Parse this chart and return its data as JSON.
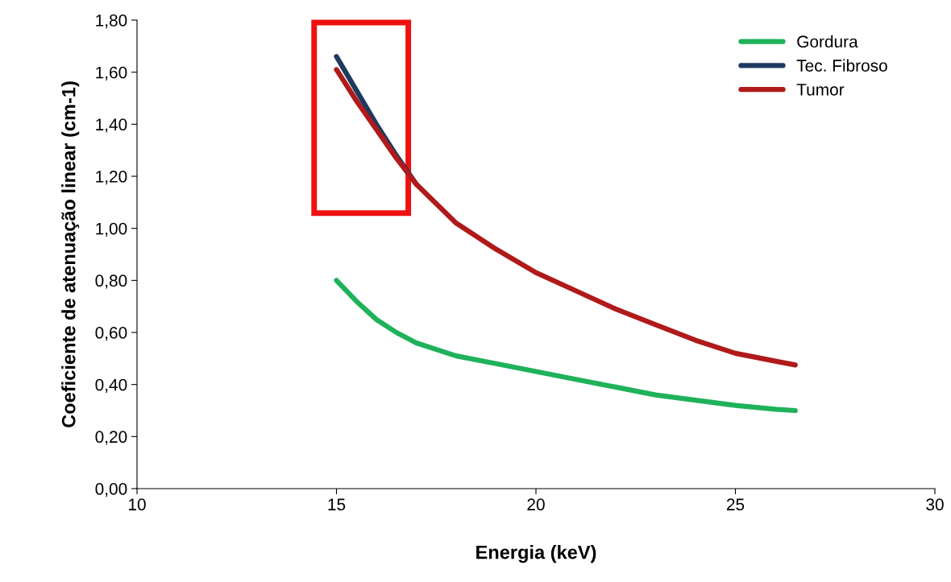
{
  "chart_data": {
    "type": "line",
    "xlabel": "Energia (keV)",
    "ylabel": "Coeficiente de atenuação linear (cm-1)",
    "xlim": [
      10,
      30
    ],
    "xticks": [
      10,
      15,
      20,
      25,
      30
    ],
    "ylim": [
      0,
      1.8
    ],
    "yticks": [
      {
        "value": 0,
        "label": "0,00"
      },
      {
        "value": 0.2,
        "label": "0,20"
      },
      {
        "value": 0.4,
        "label": "0,40"
      },
      {
        "value": 0.6,
        "label": "0,60"
      },
      {
        "value": 0.8,
        "label": "0,80"
      },
      {
        "value": 1.0,
        "label": "1,00"
      },
      {
        "value": 1.2,
        "label": "1,20"
      },
      {
        "value": 1.4,
        "label": "1,40"
      },
      {
        "value": 1.6,
        "label": "1,60"
      },
      {
        "value": 1.8,
        "label": "1,80"
      }
    ],
    "x": [
      15,
      15.5,
      16,
      16.5,
      17,
      18,
      19,
      20,
      21,
      22,
      23,
      24,
      25,
      26,
      26.5
    ],
    "series": [
      {
        "name": "Gordura",
        "color": "#1fb25a",
        "values": [
          0.8,
          0.72,
          0.65,
          0.6,
          0.56,
          0.51,
          0.48,
          0.45,
          0.42,
          0.39,
          0.36,
          0.34,
          0.32,
          0.305,
          0.3
        ]
      },
      {
        "name": "Tec. Fibroso",
        "color": "#1f3a5f",
        "values": [
          1.66,
          1.53,
          1.4,
          1.28,
          1.17,
          null,
          null,
          null,
          null,
          null,
          null,
          null,
          null,
          null,
          null
        ]
      },
      {
        "name": "Tumor",
        "color": "#b01a1a",
        "values": [
          1.61,
          1.49,
          1.38,
          1.27,
          1.17,
          1.02,
          0.92,
          0.83,
          0.76,
          0.69,
          0.63,
          0.57,
          0.52,
          0.49,
          0.475
        ]
      }
    ],
    "legend": "top right",
    "grid": false,
    "marker": "none",
    "line_style": "solid"
  }
}
